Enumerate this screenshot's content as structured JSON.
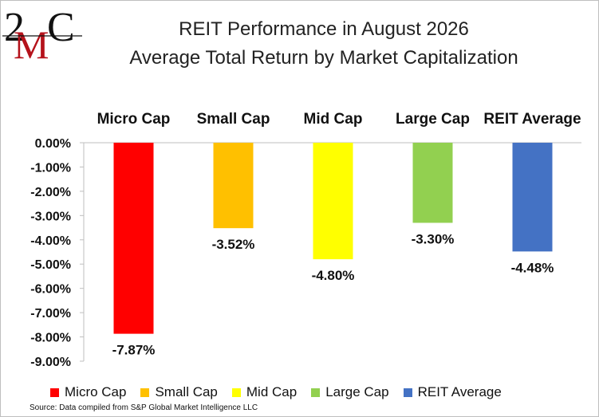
{
  "logo_text": {
    "two": "2",
    "m": "M",
    "c": "C"
  },
  "chart_data": {
    "type": "bar",
    "title": "REIT Performance in August 2026",
    "subtitle": "Average Total Return by Market Capitalization",
    "categories": [
      "Micro Cap",
      "Small Cap",
      "Mid Cap",
      "Large Cap",
      "REIT Average"
    ],
    "values": [
      -7.87,
      -3.52,
      -4.8,
      -3.3,
      -4.48
    ],
    "data_labels": [
      "-7.87%",
      "-3.52%",
      "-4.80%",
      "-3.30%",
      "-4.48%"
    ],
    "colors": [
      "#ff0000",
      "#ffc000",
      "#ffff00",
      "#92d050",
      "#4472c4"
    ],
    "ylim": [
      -9,
      0
    ],
    "yticks": [
      0,
      -1,
      -2,
      -3,
      -4,
      -5,
      -6,
      -7,
      -8,
      -9
    ],
    "ytick_labels": [
      "0.00%",
      "-1.00%",
      "-2.00%",
      "-3.00%",
      "-4.00%",
      "-5.00%",
      "-6.00%",
      "-7.00%",
      "-8.00%",
      "-9.00%"
    ],
    "category_labels_position": "top",
    "legend_position": "bottom",
    "grid": false
  },
  "source_note": "Source: Data compiled from S&P Global Market Intelligence LLC"
}
